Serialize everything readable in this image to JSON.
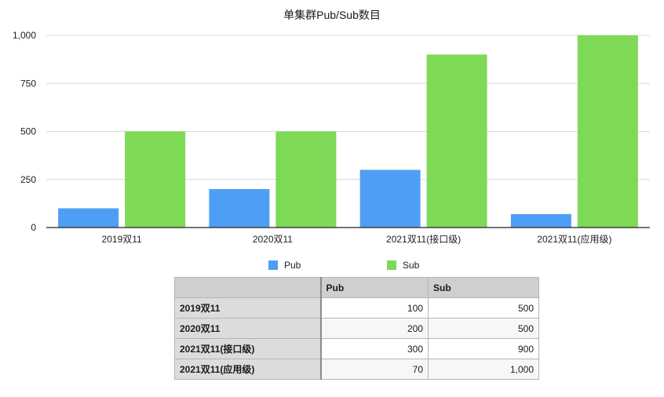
{
  "chart_data": {
    "type": "bar",
    "title": "单集群Pub/Sub数目",
    "xlabel": "",
    "ylabel": "",
    "categories": [
      "2019双11",
      "2020双11",
      "2021双11(接口级)",
      "2021双11(应用级)"
    ],
    "series": [
      {
        "name": "Pub",
        "values": [
          100,
          200,
          300,
          70
        ],
        "color": "#4f9ef5"
      },
      {
        "name": "Sub",
        "values": [
          500,
          500,
          900,
          1000
        ],
        "color": "#7ed957"
      }
    ],
    "ylim": [
      0,
      1000
    ],
    "yticks": [
      0,
      250,
      500,
      750,
      1000
    ],
    "ytick_labels": [
      "0",
      "250",
      "500",
      "750",
      "1,000"
    ],
    "grid": true,
    "legend_position": "bottom"
  },
  "table": {
    "corner": "",
    "headers": [
      "Pub",
      "Sub"
    ],
    "rows": [
      {
        "label": "2019双11",
        "pub": "100",
        "sub": "500"
      },
      {
        "label": "2020双11",
        "pub": "200",
        "sub": "500"
      },
      {
        "label": "2021双11(接口级)",
        "pub": "300",
        "sub": "900"
      },
      {
        "label": "2021双11(应用级)",
        "pub": "70",
        "sub": "1,000"
      }
    ]
  }
}
